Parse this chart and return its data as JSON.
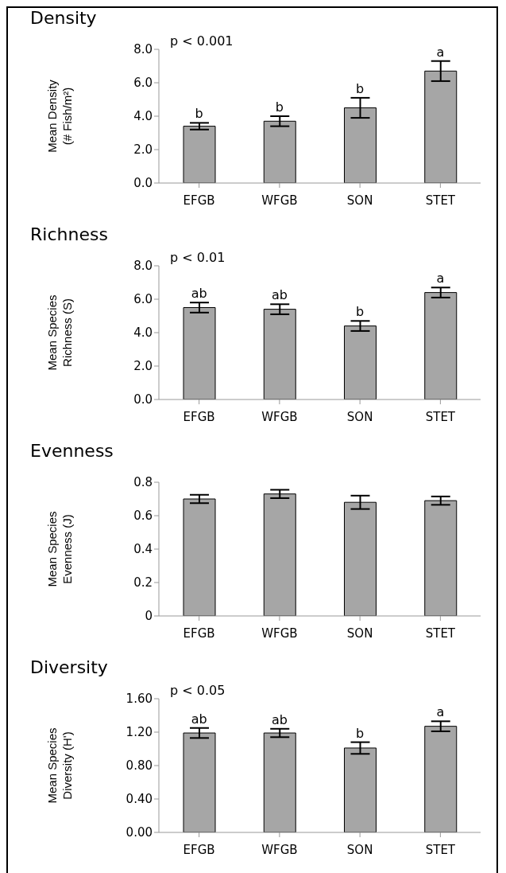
{
  "chart_data": [
    {
      "type": "bar",
      "title": "Density",
      "ylabel": "Mean Density (# Fish/m²)",
      "categories": [
        "EFGB",
        "WFGB",
        "SON",
        "STET"
      ],
      "values": [
        3.4,
        3.7,
        4.5,
        6.7
      ],
      "errors": [
        0.2,
        0.3,
        0.6,
        0.6
      ],
      "color": "#a6a6a6",
      "ylim": [
        0,
        8
      ],
      "yticks": [
        {
          "value": 0,
          "label": "0.0"
        },
        {
          "value": 2,
          "label": "2.0"
        },
        {
          "value": 4,
          "label": "4.0"
        },
        {
          "value": 6,
          "label": "6.0"
        },
        {
          "value": 8,
          "label": "8.0"
        }
      ],
      "grid": false,
      "legend": false,
      "annotations": [
        "p < 0.001",
        {
          "text": "b",
          "x": "EFGB",
          "y": 3.6
        },
        {
          "text": "b",
          "x": "WFGB",
          "y": 4.0
        },
        {
          "text": "b",
          "x": "SON",
          "y": 5.1
        },
        {
          "text": "a",
          "x": "STET",
          "y": 7.3
        }
      ]
    },
    {
      "type": "bar",
      "title": "Richness",
      "ylabel": "Mean Species Richness (S)",
      "categories": [
        "EFGB",
        "WFGB",
        "SON",
        "STET"
      ],
      "values": [
        5.5,
        5.4,
        4.4,
        6.4
      ],
      "errors": [
        0.3,
        0.3,
        0.3,
        0.3
      ],
      "color": "#a6a6a6",
      "ylim": [
        0,
        8
      ],
      "yticks": [
        {
          "value": 0,
          "label": "0.0"
        },
        {
          "value": 2,
          "label": "2.0"
        },
        {
          "value": 4,
          "label": "4.0"
        },
        {
          "value": 6,
          "label": "6.0"
        },
        {
          "value": 8,
          "label": "8.0"
        }
      ],
      "grid": false,
      "legend": false,
      "annotations": [
        "p < 0.01",
        {
          "text": "ab",
          "x": "EFGB",
          "y": 5.8
        },
        {
          "text": "ab",
          "x": "WFGB",
          "y": 5.7
        },
        {
          "text": "b",
          "x": "SON",
          "y": 4.7
        },
        {
          "text": "a",
          "x": "STET",
          "y": 6.7
        }
      ]
    },
    {
      "type": "bar",
      "title": "Evenness",
      "ylabel": "Mean Species Evenness (J)",
      "categories": [
        "EFGB",
        "WFGB",
        "SON",
        "STET"
      ],
      "values": [
        0.7,
        0.73,
        0.68,
        0.69
      ],
      "errors": [
        0.025,
        0.025,
        0.04,
        0.025
      ],
      "color": "#a6a6a6",
      "ylim": [
        0,
        0.8
      ],
      "yticks": [
        0,
        0.2,
        0.4,
        0.6,
        0.8
      ],
      "grid": false,
      "legend": false
    },
    {
      "type": "bar",
      "title": "Diversity",
      "ylabel": "Mean Species Diversity (H')",
      "categories": [
        "EFGB",
        "WFGB",
        "SON",
        "STET"
      ],
      "values": [
        1.19,
        1.19,
        1.01,
        1.27
      ],
      "errors": [
        0.06,
        0.05,
        0.07,
        0.06
      ],
      "color": "#a6a6a6",
      "ylim": [
        0,
        1.6
      ],
      "yticks": [
        {
          "value": 0,
          "label": "0.00"
        },
        {
          "value": 0.4,
          "label": "0.40"
        },
        {
          "value": 0.8,
          "label": "0.80"
        },
        {
          "value": 1.2,
          "label": "1.20"
        },
        {
          "value": 1.6,
          "label": "1.60"
        }
      ],
      "grid": false,
      "legend": false,
      "annotations": [
        "p < 0.05",
        {
          "text": "ab",
          "x": "EFGB",
          "y": 1.25
        },
        {
          "text": "ab",
          "x": "WFGB",
          "y": 1.24
        },
        {
          "text": "b",
          "x": "SON",
          "y": 1.08
        },
        {
          "text": "a",
          "x": "STET",
          "y": 1.33
        }
      ]
    }
  ]
}
